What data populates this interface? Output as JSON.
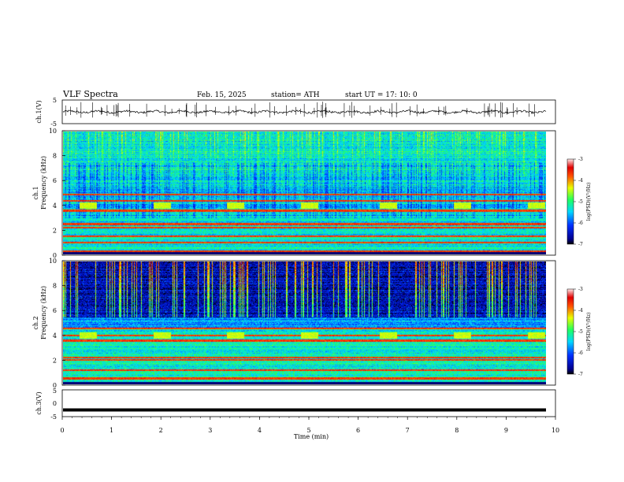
{
  "header": {
    "title": "VLF  Spectra",
    "date": "Feb. 15, 2025",
    "station": "station= ATH",
    "start": "start  UT  =   17: 10: 0"
  },
  "chart_data": [
    {
      "type": "line",
      "panel": "ch1-waveform",
      "ylabel": "ch.1(V)",
      "ylim": [
        -5,
        5
      ],
      "yticks": [
        "5",
        "-5"
      ],
      "xlim": [
        0,
        10
      ],
      "trace_level": 0,
      "spikes": true
    },
    {
      "type": "heatmap",
      "panel": "ch1-spectrogram",
      "ylabel_line1": "ch.1",
      "ylabel_line2": "Frequency  (kHz)",
      "ylim": [
        0,
        10
      ],
      "yticks": [
        "0",
        "2",
        "4",
        "6",
        "8",
        "10"
      ],
      "xlim": [
        0,
        9.8
      ],
      "tone_frequency_khz": 4,
      "tone_bursts_min": [
        0.5,
        2.0,
        3.5,
        5.0,
        6.6,
        8.1,
        9.6
      ],
      "strong_bands_khz": [
        0.3,
        1.0,
        1.5,
        2.2,
        2.5,
        3.6,
        4.4,
        4.9
      ],
      "colorbar": {
        "label": "log(PSD)(V²/Hz)",
        "range": [
          -7,
          -3
        ],
        "ticks": [
          "-3",
          "-4",
          "-5",
          "-6",
          "-7"
        ]
      }
    },
    {
      "type": "heatmap",
      "panel": "ch2-spectrogram",
      "ylabel_line1": "ch.2",
      "ylabel_line2": "Frequency  (kHz)",
      "ylim": [
        0,
        10
      ],
      "yticks": [
        "0",
        "2",
        "4",
        "6",
        "8",
        "10"
      ],
      "xlim": [
        0,
        9.8
      ],
      "tone_frequency_khz": 4,
      "tone_bursts_min": [
        0.5,
        2.0,
        3.5,
        5.0,
        6.6,
        8.1,
        9.6
      ],
      "strong_bands_khz": [
        0.5,
        1.2,
        2.0,
        2.2,
        3.6,
        4.0,
        4.6
      ],
      "colorbar": {
        "label": "log(PSD)(V²/Hz)",
        "range": [
          -7,
          -3
        ],
        "ticks": [
          "-3",
          "-4",
          "-5",
          "-6",
          "-7"
        ]
      }
    },
    {
      "type": "line",
      "panel": "ch3-waveform",
      "ylabel": "ch.3(V)",
      "ylim": [
        -5,
        5
      ],
      "yticks": [
        "5",
        "0",
        "-5"
      ],
      "xlim": [
        0,
        10
      ],
      "trace_level": -2.5,
      "xlabel": "Time  (min)",
      "xticks": [
        "0",
        "1",
        "2",
        "3",
        "4",
        "5",
        "6",
        "7",
        "8",
        "9",
        "10"
      ]
    }
  ]
}
